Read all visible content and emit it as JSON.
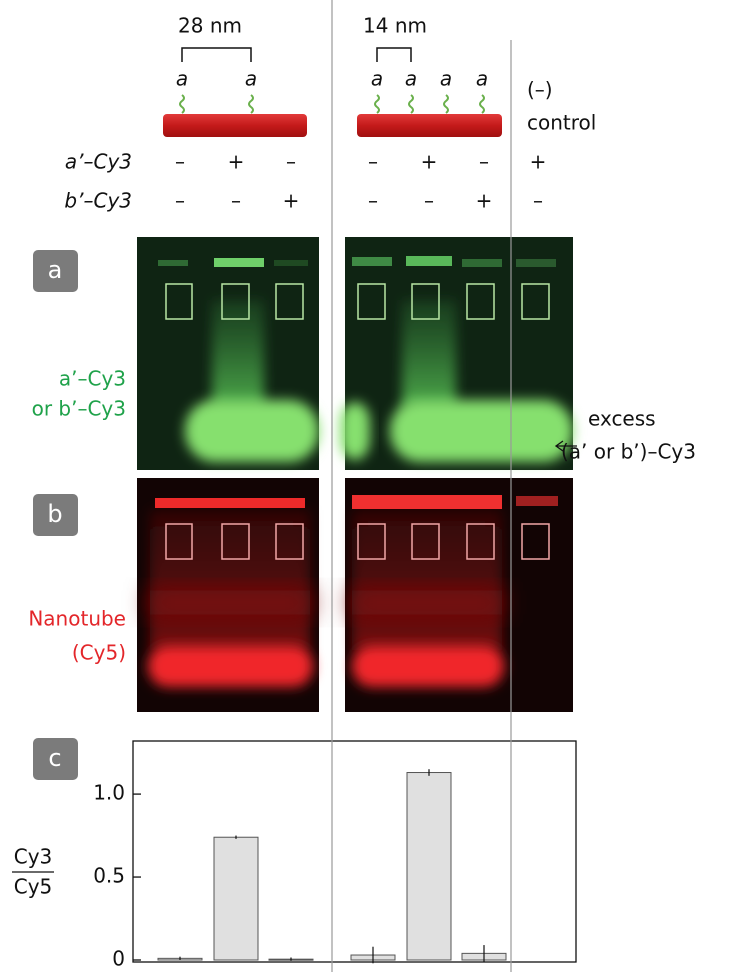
{
  "top": {
    "spacing_left": "28 nm",
    "spacing_right": "14 nm",
    "strand_labels": [
      "a",
      "a",
      "a",
      "a",
      "a",
      "a"
    ],
    "control_label": [
      "(–)",
      "control"
    ]
  },
  "rows": [
    {
      "label": "a’–Cy3",
      "signs": [
        "–",
        "+",
        "–",
        "–",
        "+",
        "–",
        "+"
      ]
    },
    {
      "label": "b’–Cy3",
      "signs": [
        "–",
        "–",
        "+",
        "–",
        "–",
        "+",
        "–"
      ]
    }
  ],
  "panels": [
    "a",
    "b",
    "c"
  ],
  "gel_a_label": [
    "a’–Cy3",
    "or b’–Cy3"
  ],
  "excess_label": [
    "excess",
    "(a’ or b’)–Cy3"
  ],
  "gel_b_label": [
    "Nanotube",
    "(Cy5)"
  ],
  "chart_data": {
    "type": "bar",
    "ylabel": [
      "Cy3",
      "Cy5"
    ],
    "categories": [
      null,
      null,
      null,
      null,
      null,
      null,
      null
    ],
    "values": [
      0.01,
      0.74,
      0.005,
      0.03,
      1.13,
      0.04,
      null
    ],
    "errors": [
      0.01,
      0.01,
      0.01,
      0.05,
      0.02,
      0.05,
      null
    ],
    "color": "#e0e0e0",
    "ylim": [
      0,
      1.32
    ],
    "yticks": [
      0,
      0.5,
      {
        "value": 1,
        "label": "1.0"
      }
    ]
  }
}
